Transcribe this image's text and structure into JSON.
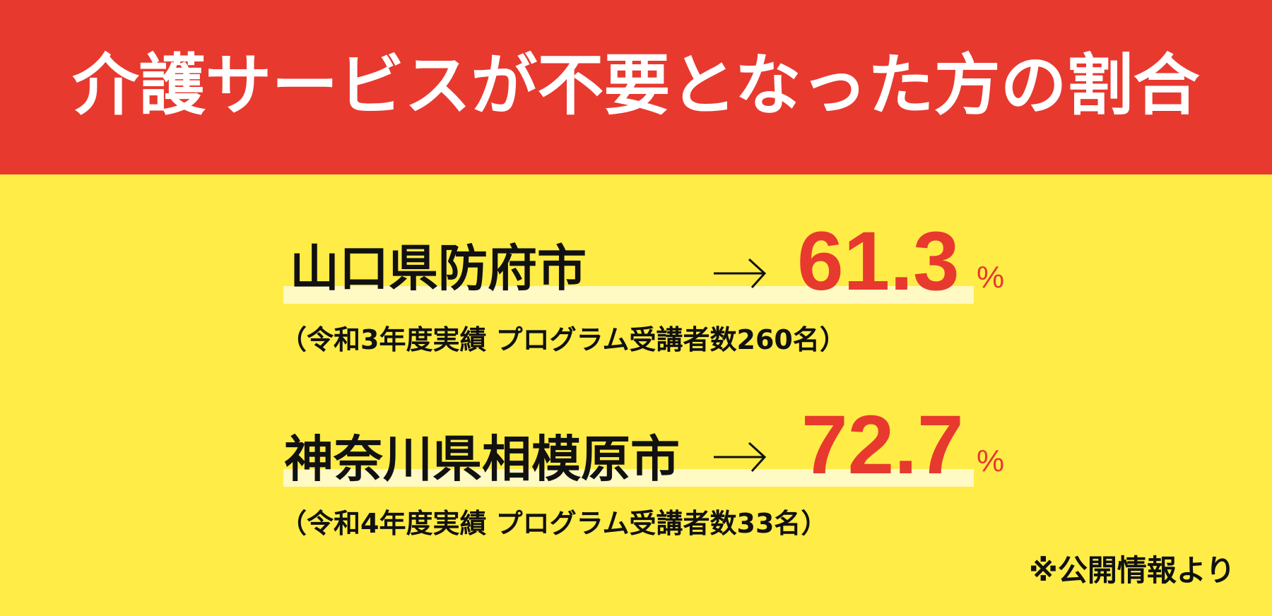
{
  "title": "介護サービスが不要となった方の割合",
  "colors": {
    "header": "#e8392f",
    "background": "#ffec47",
    "highlight": "#fff9c4",
    "value": "#e8392f"
  },
  "rows": [
    {
      "city": "山口県防府市",
      "arrow": "→",
      "value": "61.3",
      "unit": "%",
      "note": "（令和3年度実績 プログラム受講者数260名）"
    },
    {
      "city": "神奈川県相模原市",
      "arrow": "→",
      "value": "72.7",
      "unit": "%",
      "note": "（令和4年度実績 プログラム受講者数33名）"
    }
  ],
  "source": "※公開情報より"
}
